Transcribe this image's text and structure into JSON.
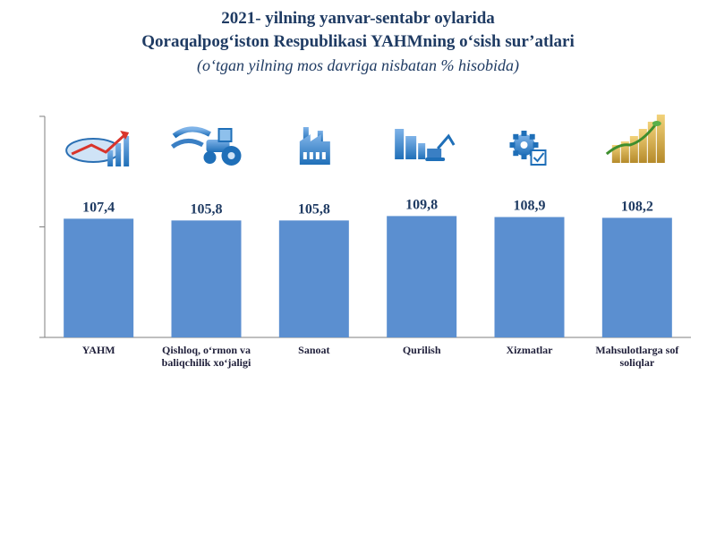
{
  "chart_data": {
    "type": "bar",
    "title": "2021- yilning yanvar-sentabr oylarida",
    "title_line2": "Qoraqalpog‘iston Respublikasi YAHMning o‘sish sur’atlari",
    "subtitle": "(o‘tgan yilning mos davriga nisbatan % hisobida)",
    "categories": [
      [
        "YAHM"
      ],
      [
        "Qishloq, o‘rmon va",
        "baliqchilik xo‘jaligi"
      ],
      [
        "Sanoat"
      ],
      [
        "Qurilish"
      ],
      [
        "Xizmatlar"
      ],
      [
        "Mahsulotlarga sof",
        "soliqlar"
      ]
    ],
    "values": [
      107.4,
      105.8,
      105.8,
      109.8,
      108.9,
      108.2
    ],
    "value_labels": [
      "107,4",
      "105,8",
      "105,8",
      "109,8",
      "108,9",
      "108,2"
    ],
    "icons": [
      "economy-chart-icon",
      "tractor-icon",
      "factory-icon",
      "construction-excavator-icon",
      "gear-document-icon",
      "money-growth-icon"
    ],
    "ylim": [
      0,
      200
    ],
    "xlabel": "",
    "ylabel": "",
    "bar_color": "#5b8fd0",
    "axis_color": "#7f7f7f"
  }
}
